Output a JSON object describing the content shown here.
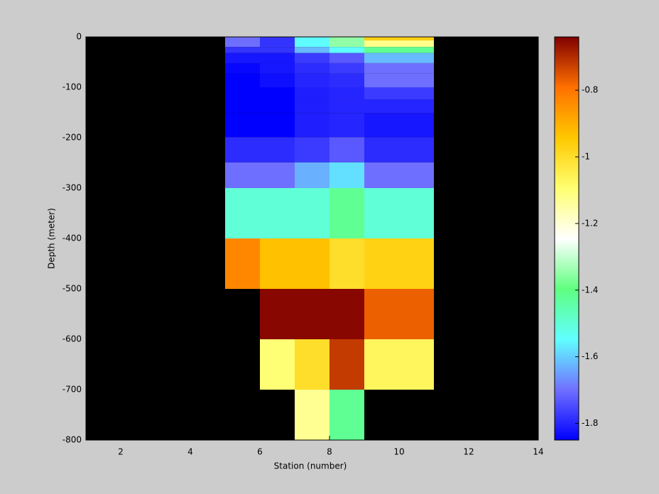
{
  "chart_data": {
    "type": "heatmap",
    "x_label": "Station (number)",
    "y_label": "Depth (meter)",
    "x_edges": [
      5,
      6,
      7,
      8,
      9,
      11
    ],
    "y_edges": [
      0,
      -7,
      -20,
      -32,
      -52,
      -73,
      -100,
      -124,
      -151,
      -199,
      -249,
      -300,
      -400,
      -500,
      -600,
      -700,
      -800
    ],
    "values": [
      [
        -1.7,
        -1.78,
        -1.55,
        -1.35,
        -0.97
      ],
      [
        -1.7,
        -1.78,
        -1.55,
        -1.35,
        -1.12
      ],
      [
        -1.78,
        -1.78,
        -1.62,
        -1.55,
        -1.42
      ],
      [
        -1.82,
        -1.82,
        -1.77,
        -1.73,
        -1.62
      ],
      [
        -1.84,
        -1.82,
        -1.79,
        -1.77,
        -1.7
      ],
      [
        -1.85,
        -1.83,
        -1.8,
        -1.79,
        -1.7
      ],
      [
        -1.85,
        -1.85,
        -1.81,
        -1.8,
        -1.77
      ],
      [
        -1.85,
        -1.85,
        -1.81,
        -1.8,
        -1.8
      ],
      [
        -1.85,
        -1.85,
        -1.81,
        -1.8,
        -1.82
      ],
      [
        -1.79,
        -1.79,
        -1.77,
        -1.73,
        -1.79
      ],
      [
        -1.7,
        -1.7,
        -1.63,
        -1.58,
        -1.7
      ],
      [
        -1.5,
        -1.5,
        -1.5,
        -1.42,
        -1.5
      ],
      [
        -0.83,
        -0.93,
        -0.93,
        -1.0,
        -0.97
      ],
      [
        null,
        -0.65,
        -0.65,
        -0.65,
        -0.77
      ],
      [
        null,
        -1.1,
        -1.0,
        -0.72,
        -1.07
      ],
      [
        null,
        null,
        -1.13,
        -1.42,
        null
      ]
    ],
    "xlim": [
      1,
      14
    ],
    "xticks": [
      2,
      4,
      6,
      8,
      10,
      12,
      14
    ],
    "ylim": [
      -800,
      0
    ],
    "yticks": [
      0,
      -100,
      -200,
      -300,
      -400,
      -500,
      -600,
      -700,
      -800
    ],
    "clim": [
      -1.85,
      -0.64
    ],
    "cticks": [
      -1.8,
      -1.6,
      -1.4,
      -1.2,
      -1,
      -0.8
    ],
    "colormap": [
      "#0000ff",
      "#7070ff",
      "#60ffff",
      "#60ff80",
      "#ffffff",
      "#ffff70",
      "#ffc800",
      "#ff7000",
      "#800000"
    ],
    "background": "#000000"
  }
}
